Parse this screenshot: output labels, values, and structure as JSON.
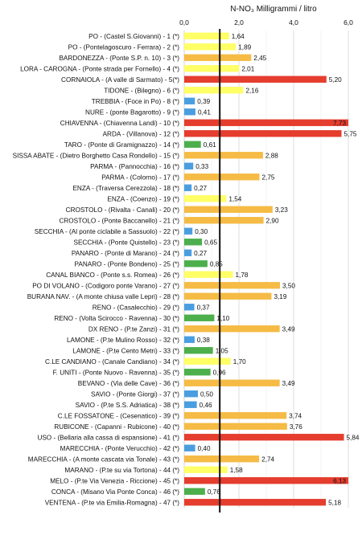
{
  "chart_data": {
    "type": "bar",
    "orientation": "horizontal",
    "title": "N-NO₃ Milligrammi / litro",
    "xlim": [
      0,
      6
    ],
    "xticks": [
      "0,0",
      "2,0",
      "4,0",
      "6,0"
    ],
    "reference_line": 1.3,
    "grid": "vertical",
    "colors": {
      "yellow": "#ffff66",
      "orange": "#f5bb45",
      "red": "#e53d2e",
      "blue": "#4a9ee0",
      "green": "#4caf4c",
      "reference": "#111111"
    },
    "categories": [
      "PO - (Castel S.Giovanni) - 1 (*)",
      "PO - (Pontelagoscuro - Ferrara) - 2 (*)",
      "BARDONEZZA - (Ponte S.P. n. 10) - 3 (*)",
      "LORA - CAROGNA - (Ponte strada per Fornello) - 4 (*)",
      "CORNAIOLA - (A valle di Sarmato) - 5(*)",
      "TIDONE - (Bilegno) - 6 (*)",
      "TREBBIA - (Foce in Po) - 8 (*)",
      "NURE - (ponte Bagarotto) - 9 (*)",
      "CHIAVENNA - (Chiavenna Landi) - 10 (*)",
      "ARDA - (Villanova) - 12 (*)",
      "TARO - (Ponte di Gramignazzo) - 14 (*)",
      "SISSA ABATE - (Dietro Borghetto Casa Rondello) - 15 (*)",
      "PARMA - (Pannocchia) - 16 (*)",
      "PARMA - (Colorno) - 17 (*)",
      "ENZA - (Traversa Cerezzola) - 18 (*)",
      "ENZA - (Coenzo) - 19 (*)",
      "CROSTOLO - (Rivalta - Canali) - 20 (*)",
      "CROSTOLO - (Ponte Baccanello) - 21 (*)",
      "SECCHIA - (Al ponte ciclabile a Sassuolo) - 22 (*)",
      "SECCHIA - (Ponte Quistello) - 23 (*)",
      "PANARO - (Ponte di Marano) - 24 (*)",
      "PANARO - (Ponte Bondeno) - 25 (*)",
      "CANAL BIANCO - (Ponte s.s. Romea) - 26 (*)",
      "PO DI VOLANO - (Codigoro ponte Varano) - 27 (*)",
      "BURANA NAV. - (A monte chiusa valle Lepri) - 28 (*)",
      "RENO - (Casalecchio) - 29 (*)",
      "RENO - (Volta Scirocco - Ravenna) - 30 (*)",
      "DX RENO - (P.te Zanzi) - 31 (*)",
      "LAMONE - (P.te Mulino Rosso) - 32 (*)",
      "LAMONE - (P.te Cento Metri) - 33 (*)",
      "C.LE CANDIANO - (Canale Candiano) - 34 (*)",
      "F. UNITI - (Ponte Nuovo - Ravenna) - 35 (*)",
      "BEVANO - (Via delle Cave) - 36 (*)",
      "SAVIO - (Ponte Giorgi) - 37 (*)",
      "SAVIO - (P.te S.S. Adriatica) - 38 (*)",
      "C.LE FOSSATONE - (Cesenatico) - 39 (*)",
      "RUBICONE - (Capanni - Rubicone) - 40 (*)",
      "USO - (Bellaria alla cassa di espansione) - 41 (*)",
      "MARECCHIA - (Ponte Verucchio) - 42 (*)",
      "MARECCHIA - (A monte cascata via Tonale) - 43 (*)",
      "MARANO - (P.te su via Tortona) - 44 (*)",
      "MELO - (P.te Via Venezia - Riccione) - 45 (*)",
      "CONCA - (Misano Via Ponte Conca) - 46 (*)",
      "VENTENA - (P.te via Emilia-Romagna) - 47 (*)"
    ],
    "values": [
      1.64,
      1.89,
      2.45,
      2.01,
      5.2,
      2.16,
      0.39,
      0.41,
      7.73,
      5.75,
      0.61,
      2.88,
      0.33,
      2.75,
      0.27,
      1.54,
      3.23,
      2.9,
      0.3,
      0.65,
      0.27,
      0.85,
      1.78,
      3.5,
      3.19,
      0.37,
      1.1,
      3.49,
      0.38,
      1.05,
      1.7,
      0.96,
      3.49,
      0.5,
      0.46,
      3.74,
      3.76,
      5.84,
      0.4,
      2.74,
      1.58,
      6.13,
      0.76,
      5.18
    ],
    "value_labels": [
      "1,64",
      "1,89",
      "2,45",
      "2,01",
      "5,20",
      "2,16",
      "0,39",
      "0,41",
      "7,73",
      "5,75",
      "0,61",
      "2,88",
      "0,33",
      "2,75",
      "0,27",
      "1,54",
      "3,23",
      "2,90",
      "0,30",
      "0,65",
      "0,27",
      "0,85",
      "1,78",
      "3,50",
      "3,19",
      "0,37",
      "1,10",
      "3,49",
      "0,38",
      "1,05",
      "1,70",
      "0,96",
      "3,49",
      "0,50",
      "0,46",
      "3,74",
      "3,76",
      "5,84",
      "0,40",
      "2,74",
      "1,58",
      "6,13",
      "0,76",
      "5,18"
    ],
    "bar_colors": [
      "yellow",
      "yellow",
      "orange",
      "yellow",
      "red",
      "yellow",
      "blue",
      "blue",
      "red",
      "red",
      "green",
      "orange",
      "blue",
      "orange",
      "blue",
      "yellow",
      "orange",
      "orange",
      "blue",
      "green",
      "blue",
      "green",
      "yellow",
      "orange",
      "orange",
      "blue",
      "green",
      "orange",
      "blue",
      "green",
      "yellow",
      "green",
      "orange",
      "blue",
      "blue",
      "orange",
      "orange",
      "red",
      "blue",
      "orange",
      "yellow",
      "red",
      "green",
      "red"
    ]
  }
}
